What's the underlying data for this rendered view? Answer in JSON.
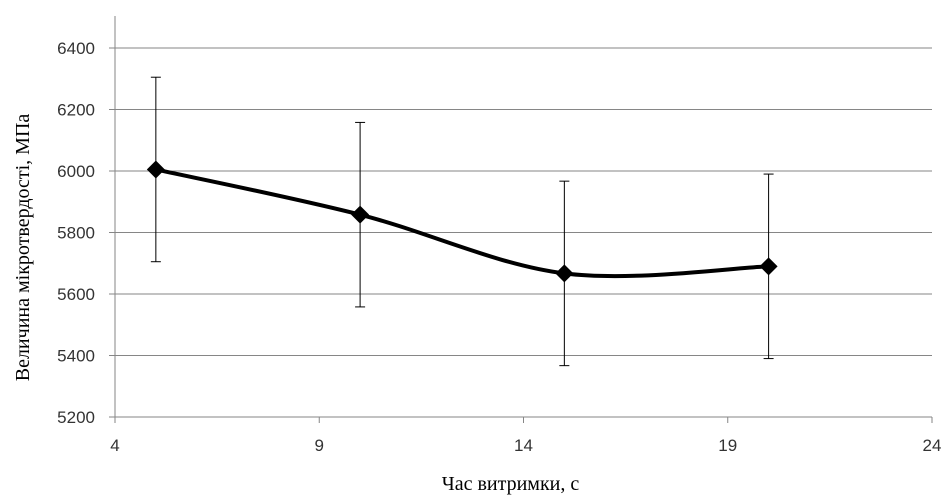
{
  "chart_data": {
    "type": "line",
    "xlabel": "Час витримки, с",
    "ylabel": "Величина мікротвердості, МПа",
    "xlim": [
      4,
      24
    ],
    "ylim": [
      5200,
      6400
    ],
    "x_ticks": [
      4,
      9,
      14,
      19,
      24
    ],
    "y_ticks": [
      5200,
      5400,
      5600,
      5800,
      6000,
      6200,
      6400
    ],
    "x_tick_labels": [
      "4",
      "9",
      "14",
      "19",
      "24"
    ],
    "y_tick_labels": [
      "5200",
      "5400",
      "5600",
      "5800",
      "6000",
      "6200",
      "6400"
    ],
    "grid": {
      "horizontal": true,
      "vertical": false
    },
    "smooth": true,
    "series": [
      {
        "x": [
          5,
          10,
          15,
          20
        ],
        "y": [
          6005,
          5858,
          5667,
          5690
        ],
        "error": [
          300,
          300,
          300,
          300
        ],
        "marker": "diamond",
        "color": "#000000"
      }
    ]
  }
}
